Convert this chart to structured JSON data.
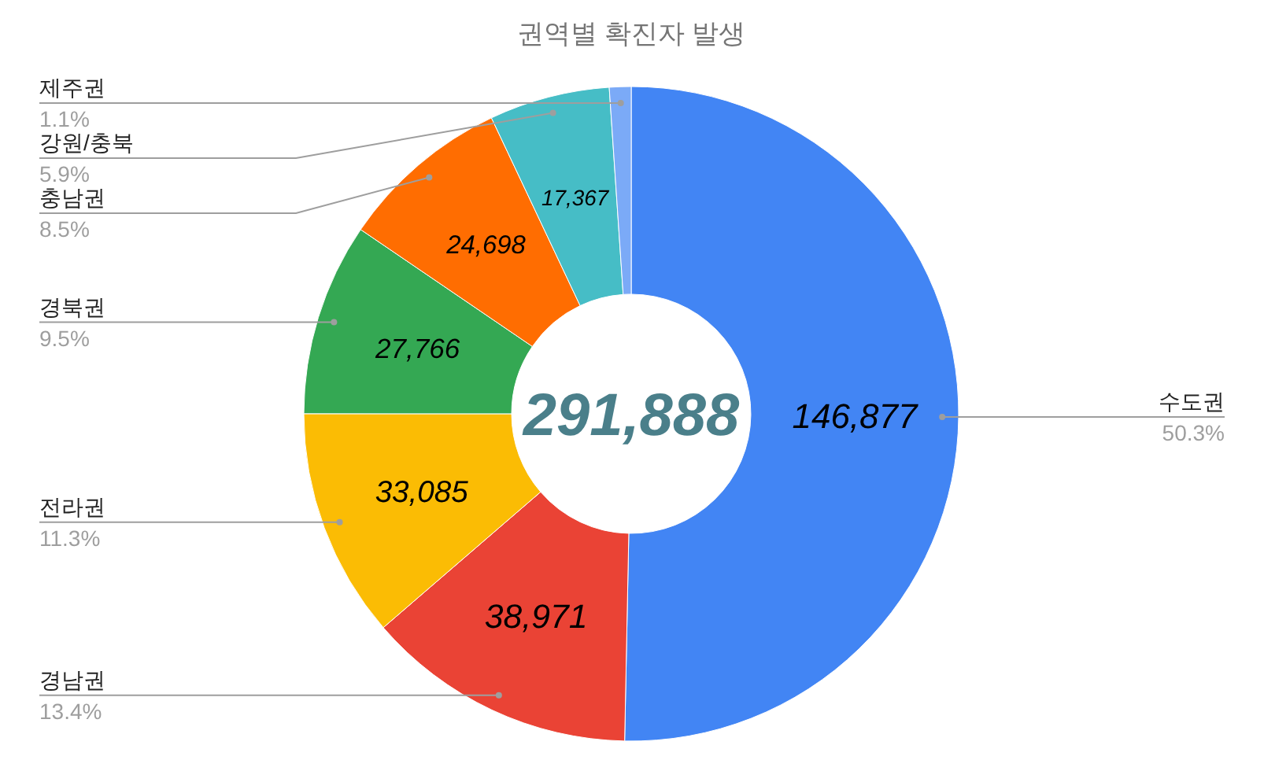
{
  "chart_data": {
    "type": "donut",
    "title": "권역별 확진자 발생",
    "categories": [
      "수도권",
      "경남권",
      "전라권",
      "경북권",
      "충남권",
      "강원/충북",
      "제주권"
    ],
    "values": [
      146877,
      38971,
      33085,
      27766,
      24698,
      17367,
      3124
    ],
    "colors": [
      "#4285f4",
      "#ea4335",
      "#fbbc04",
      "#34a853",
      "#ff6d01",
      "#46bdc6",
      "#7baaf7"
    ],
    "value_labels": [
      "146,877",
      "38,971",
      "33,085",
      "27,766",
      "24,698",
      "17,367",
      null
    ],
    "annotations": [
      "291,888",
      {
        "text": "50.3%",
        "x": "수도권"
      },
      {
        "text": "13.4%",
        "x": "경남권"
      },
      {
        "text": "11.3%",
        "x": "전라권"
      },
      {
        "text": "9.5%",
        "x": "경북권"
      },
      {
        "text": "8.5%",
        "x": "충남권"
      },
      {
        "text": "5.9%",
        "x": "강원/충북"
      },
      {
        "text": "1.1%",
        "x": "제주권"
      }
    ]
  }
}
